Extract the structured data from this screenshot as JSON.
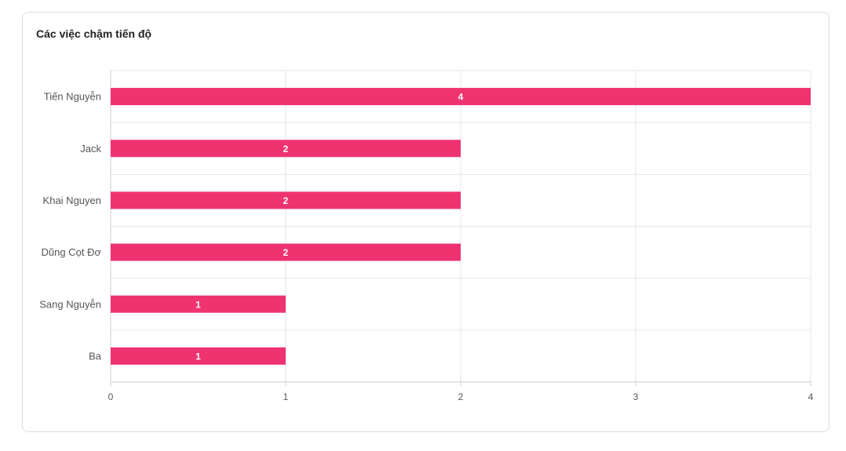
{
  "card": {
    "title": "Các việc chậm tiến độ"
  },
  "colors": {
    "bar": "#ee3370",
    "grid": "#e6e6e6",
    "axis": "#cccccc",
    "tick_text": "#555555",
    "bar_label": "#ffffff"
  },
  "chart_data": {
    "type": "bar",
    "orientation": "horizontal",
    "title": "Các việc chậm tiến độ",
    "categories": [
      "Tiến Nguyễn",
      "Jack",
      "Khai Nguyen",
      "Dũng Cọt Đơ",
      "Sang Nguyễn",
      "Ba"
    ],
    "values": [
      4,
      2,
      2,
      2,
      1,
      1
    ],
    "xlim": [
      0,
      4
    ],
    "x_ticks": [
      "0",
      "1",
      "2",
      "3",
      "4"
    ],
    "xlabel": "",
    "ylabel": "",
    "grid": true,
    "data_labels": true
  }
}
